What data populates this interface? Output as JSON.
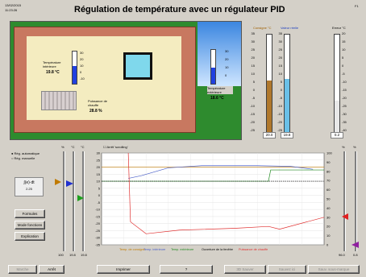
{
  "header": {
    "date": "13/02/2015",
    "time": "11:23:26",
    "title": "Régulation de température avec un régulateur PID",
    "help": "F1"
  },
  "scene": {
    "indoor_label": "Température intérieure",
    "indoor_value": "19.8 °C",
    "outdoor_label": "Température extérieure",
    "outdoor_value": "18.6 °C",
    "heater_label": "Puissance de chauffe",
    "heater_value": "28.8 %",
    "therm_ticks": [
      "30",
      "20",
      "10",
      "0",
      "-10"
    ],
    "outdoor_ticks": [
      "30",
      "20",
      "10",
      "0"
    ]
  },
  "gauges": {
    "setpoint_label": "Consigne °C",
    "measured_label": "Valeur réelle",
    "error_label": "Erreur °C",
    "temp_ticks": [
      "35",
      "30",
      "25",
      "20",
      "15",
      "10",
      "5",
      "0",
      "-5",
      "-10",
      "-15",
      "-20",
      "-25"
    ],
    "error_ticks": [
      "20",
      "15",
      "10",
      "5",
      "0",
      "-5",
      "-10",
      "-15",
      "-20",
      "-25",
      "-30",
      "-35",
      "-40"
    ],
    "setpoint_value": "20.0",
    "measured_value": "19.8",
    "error_value": "0.2",
    "setpoint_fill": 0.53,
    "measured_fill": 0.55,
    "error_level": 0.33
  },
  "controls": {
    "mode_auto": "Rég. automatique",
    "mode_manual": "Rég. manuelle",
    "col_labels": [
      "%",
      "°C",
      "°C"
    ],
    "formula": "∫(e)·dt",
    "formula_value": "2.25",
    "btn_formulas": "Formules",
    "btn_mode": "Mode fonctions",
    "btn_explanation": "Explication",
    "bottom_values": [
      "100",
      "19.8",
      "19.8"
    ],
    "right_col_labels": [
      "%",
      "%"
    ],
    "right_values": [
      "96.0",
      "0.8"
    ],
    "auto_scale": "Arrêt 'scrolling'"
  },
  "chart_data": {
    "type": "line",
    "yticks_left": [
      "30",
      "25",
      "20",
      "15",
      "10",
      "5",
      "0",
      "-5",
      "-10",
      "-15",
      "-20",
      "-25",
      "-30",
      "-35"
    ],
    "yticks_right": [
      "100",
      "90",
      "80",
      "70",
      "60",
      "50",
      "40",
      "30",
      "20",
      "10",
      "0"
    ],
    "ylim": [
      -35,
      30
    ],
    "series": [
      {
        "name": "Temp. de consigne",
        "color": "#c07a00",
        "x": [
          0,
          1
        ],
        "y": [
          20,
          20
        ]
      },
      {
        "name": "Temp. intérieure",
        "color": "#4a5fc8",
        "x": [
          0.12,
          0.18,
          0.3,
          0.45,
          0.7,
          0.85,
          0.95
        ],
        "y": [
          12,
          14,
          19.5,
          21,
          21,
          20.5,
          18.5
        ]
      },
      {
        "name": "Temp. extérieure",
        "color": "#228b22",
        "x": [
          0,
          0.75,
          0.76,
          1
        ],
        "y": [
          10,
          10,
          18,
          18
        ]
      },
      {
        "name": "Ouverture de la fenêtre",
        "color": "#000000",
        "x": [
          0,
          1
        ],
        "y": [
          10,
          10
        ]
      },
      {
        "name": "Puissance de chauffe",
        "color": "#e03030",
        "x": [
          0.12,
          0.13,
          0.2,
          0.35,
          0.6,
          0.75,
          0.8,
          1
        ],
        "y": [
          100,
          25,
          12,
          16,
          18,
          20,
          17,
          30
        ]
      }
    ]
  },
  "footer": {
    "b1": "Marche",
    "b2": "Arrêt",
    "b3": "Imprimer",
    "b4": "?",
    "b5": "3D Sauver",
    "b6": "Sauvez ici",
    "b7": "Sauv. sous-marque"
  }
}
